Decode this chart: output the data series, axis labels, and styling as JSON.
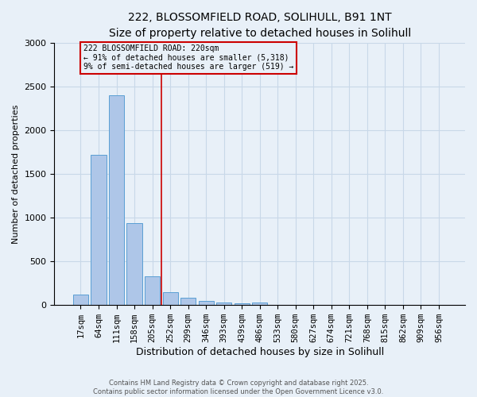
{
  "title_line1": "222, BLOSSOMFIELD ROAD, SOLIHULL, B91 1NT",
  "title_line2": "Size of property relative to detached houses in Solihull",
  "xlabel": "Distribution of detached houses by size in Solihull",
  "ylabel": "Number of detached properties",
  "bar_labels": [
    "17sqm",
    "64sqm",
    "111sqm",
    "158sqm",
    "205sqm",
    "252sqm",
    "299sqm",
    "346sqm",
    "393sqm",
    "439sqm",
    "486sqm",
    "533sqm",
    "580sqm",
    "627sqm",
    "674sqm",
    "721sqm",
    "768sqm",
    "815sqm",
    "862sqm",
    "909sqm",
    "956sqm"
  ],
  "bar_values": [
    120,
    1720,
    2400,
    940,
    330,
    145,
    80,
    45,
    25,
    20,
    30,
    5,
    2,
    0,
    0,
    0,
    0,
    0,
    0,
    0,
    0
  ],
  "bar_color": "#aec6e8",
  "bar_edgecolor": "#5a9fd4",
  "grid_color": "#c8d8e8",
  "background_color": "#e8f0f8",
  "vline_x": 4.5,
  "vline_color": "#cc0000",
  "annotation_text": "222 BLOSSOMFIELD ROAD: 220sqm\n← 91% of detached houses are smaller (5,318)\n9% of semi-detached houses are larger (519) →",
  "ylim": [
    0,
    3000
  ],
  "footer_line1": "Contains HM Land Registry data © Crown copyright and database right 2025.",
  "footer_line2": "Contains public sector information licensed under the Open Government Licence v3.0.",
  "title_fontsize": 10,
  "subtitle_fontsize": 9,
  "ylabel_fontsize": 8,
  "xlabel_fontsize": 9,
  "tick_fontsize": 7.5,
  "annot_fontsize": 7
}
